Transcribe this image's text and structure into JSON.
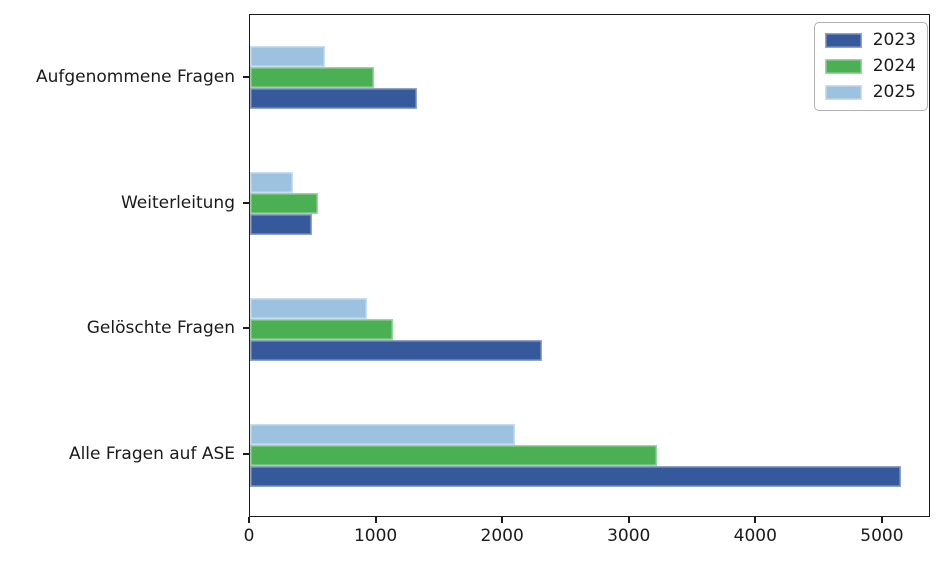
{
  "chart_data": {
    "type": "bar",
    "orientation": "horizontal",
    "title": "",
    "xlabel": "",
    "ylabel": "",
    "categories": [
      "Aufgenommene Fragen",
      "Weiterleitung",
      "Gelöschte Fragen",
      "Alle Fragen auf ASE"
    ],
    "series": [
      {
        "name": "2023",
        "color": "#35599b",
        "values": [
          1320,
          490,
          2310,
          5140
        ]
      },
      {
        "name": "2024",
        "color": "#4bb054",
        "values": [
          980,
          540,
          1130,
          3215
        ]
      },
      {
        "name": "2025",
        "color": "#9cc2e0",
        "values": [
          590,
          340,
          925,
          2090
        ]
      }
    ],
    "bar_order_top_to_bottom": [
      "2025",
      "2024",
      "2023"
    ],
    "xlim": [
      0,
      5380
    ],
    "x_ticks": [
      0,
      1000,
      2000,
      3000,
      4000,
      5000
    ],
    "x_tick_labels": [
      "0",
      "1000",
      "2000",
      "3000",
      "4000",
      "5000"
    ],
    "grid": false,
    "legend_position": "upper right",
    "legend_entries": [
      "2023",
      "2024",
      "2025"
    ],
    "frame_color": "#1c1c1c",
    "background_color": "#ffffff"
  }
}
